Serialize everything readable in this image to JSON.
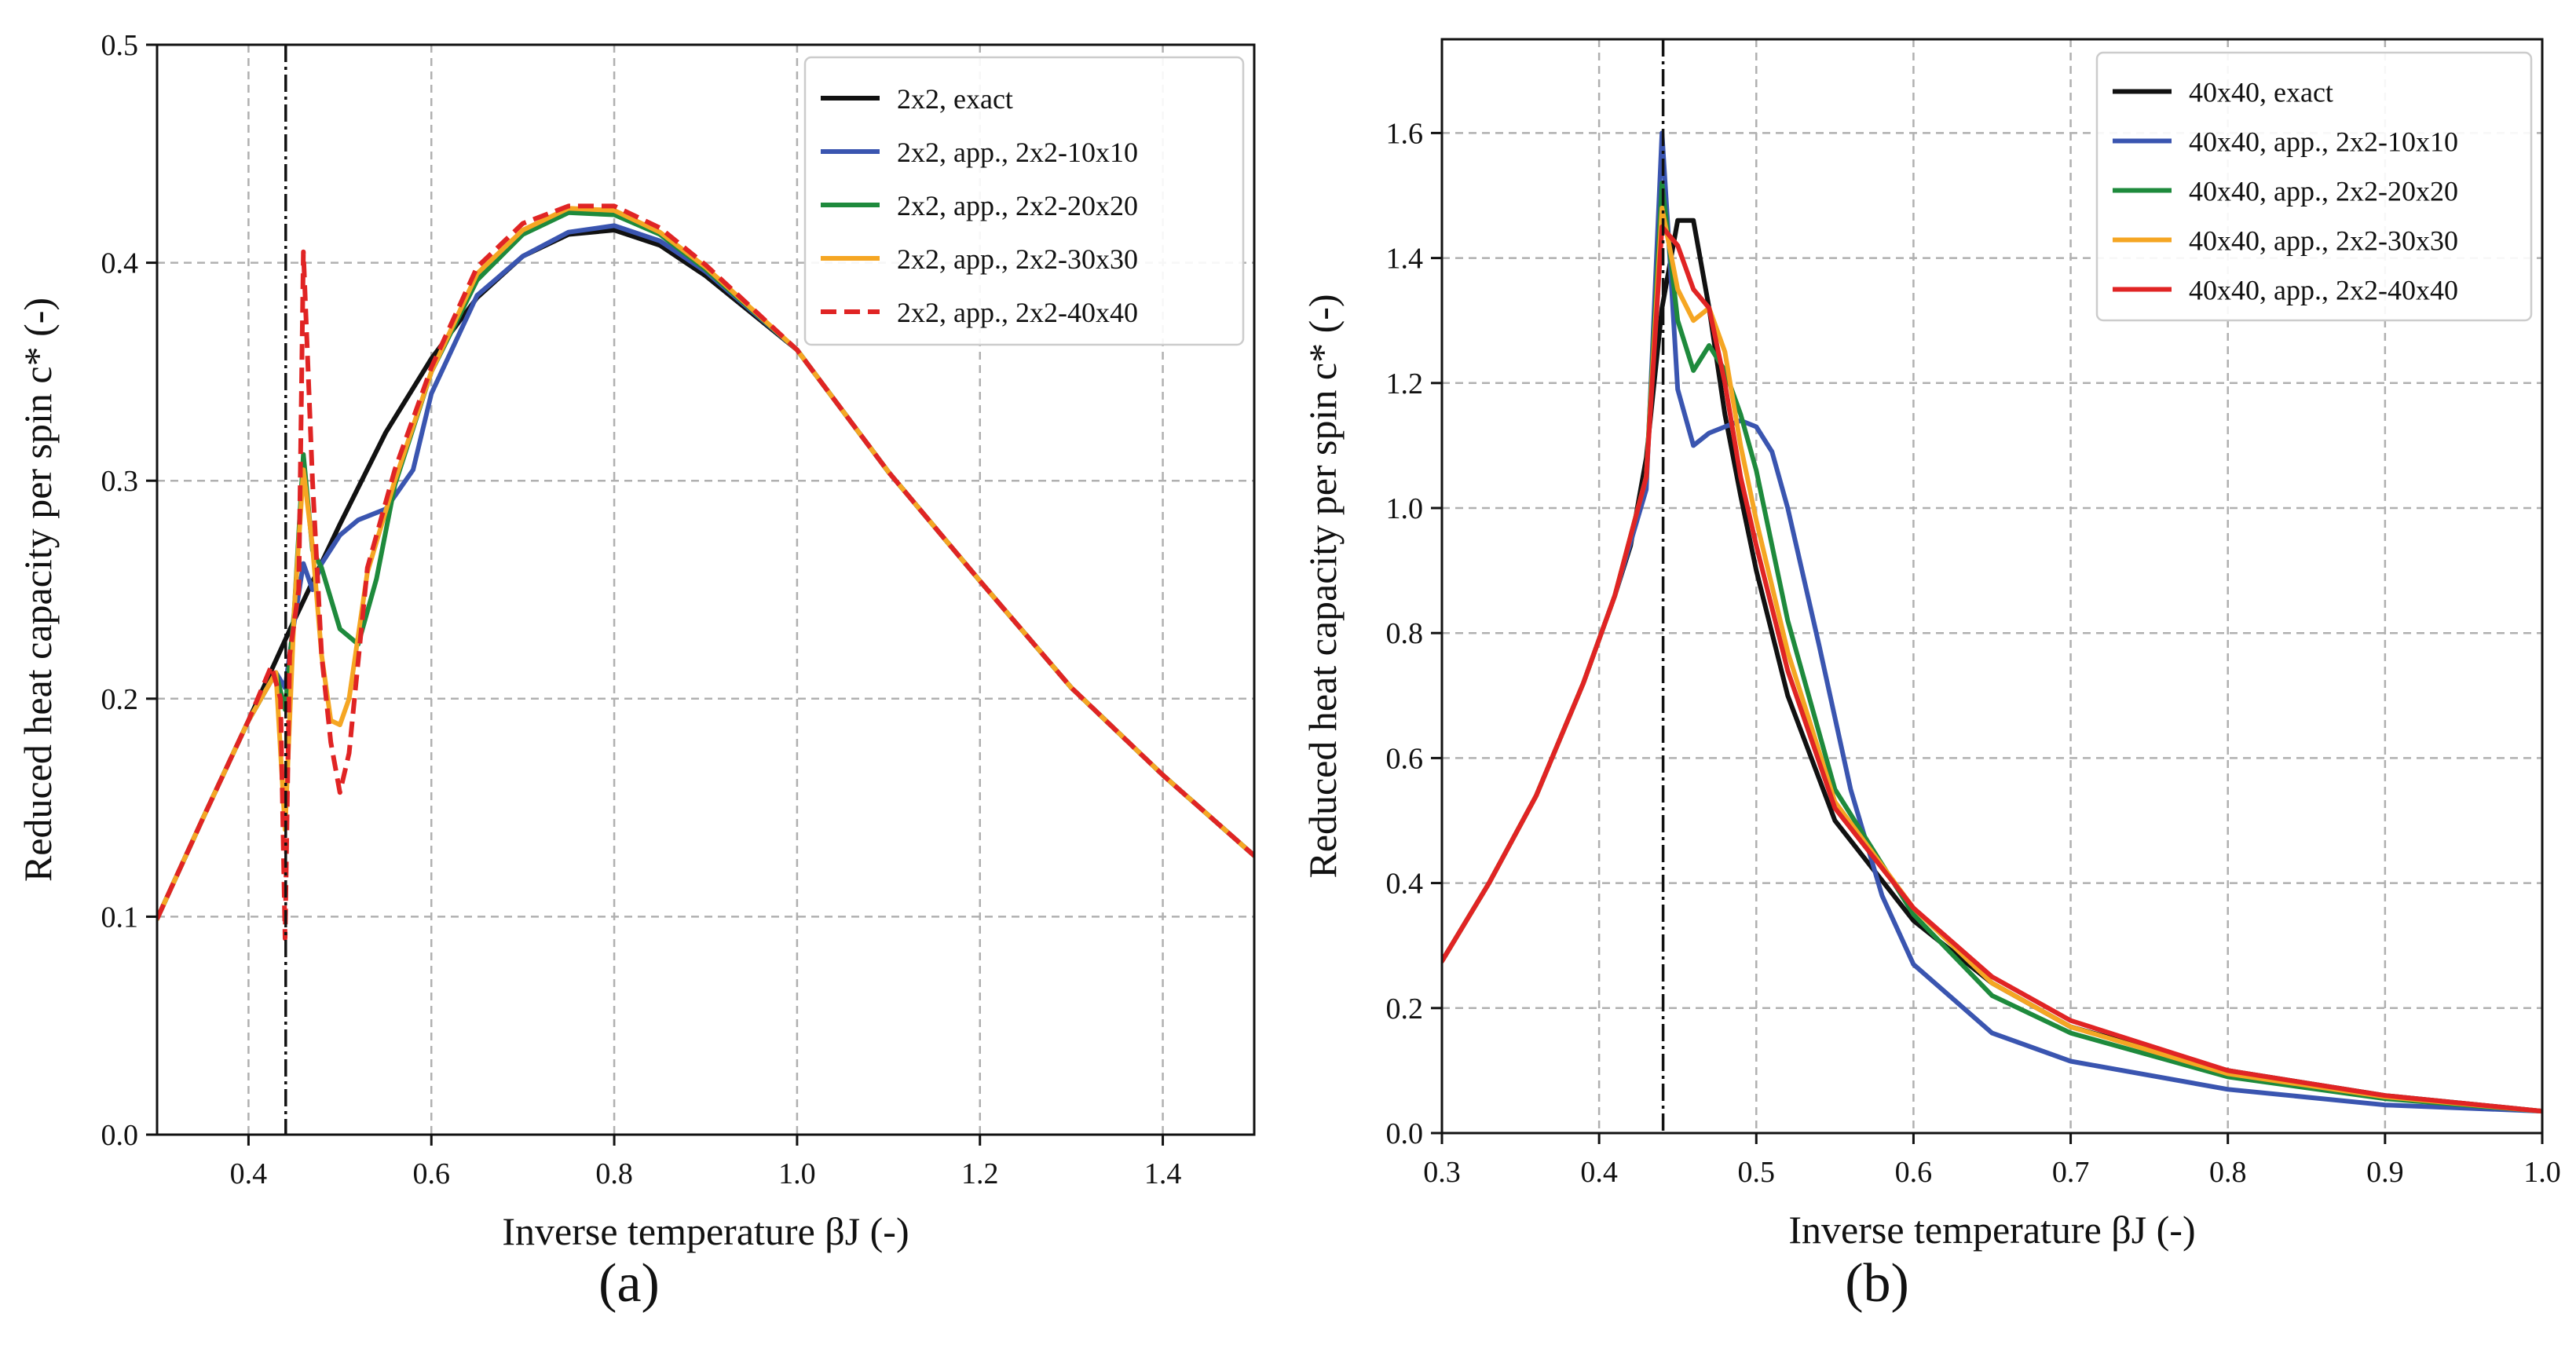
{
  "figure": {
    "captions": [
      "(a)",
      "(b)"
    ]
  },
  "chart_data": [
    {
      "id": "a",
      "type": "line",
      "xlabel": "Inverse temperature βJ (-)",
      "ylabel": "Reduced heat capacity per spin c* (-)",
      "xlim": [
        0.3,
        1.5
      ],
      "ylim": [
        0.0,
        0.5
      ],
      "xticks": [
        0.4,
        0.6,
        0.8,
        1.0,
        1.2,
        1.4
      ],
      "xtick_labels": [
        "0.4",
        "0.6",
        "0.8",
        "1.0",
        "1.2",
        "1.4"
      ],
      "yticks": [
        0.0,
        0.1,
        0.2,
        0.3,
        0.4,
        0.5
      ],
      "ytick_labels": [
        "0.0",
        "0.1",
        "0.2",
        "0.3",
        "0.4",
        "0.5"
      ],
      "grid": true,
      "vline": 0.4407,
      "legend_position": "top-right",
      "series": [
        {
          "name": "2x2, exact",
          "color": "#111111",
          "dash": "solid",
          "x": [
            0.3,
            0.35,
            0.4,
            0.45,
            0.5,
            0.55,
            0.6,
            0.65,
            0.7,
            0.75,
            0.8,
            0.85,
            0.9,
            1.0,
            1.1,
            1.2,
            1.3,
            1.4,
            1.5
          ],
          "y": [
            0.099,
            0.145,
            0.19,
            0.236,
            0.28,
            0.322,
            0.356,
            0.384,
            0.403,
            0.413,
            0.415,
            0.408,
            0.394,
            0.36,
            0.304,
            0.254,
            0.205,
            0.165,
            0.128
          ]
        },
        {
          "name": "2x2, app., 2x2-10x10",
          "color": "#3a55b0",
          "dash": "solid",
          "x": [
            0.3,
            0.35,
            0.4,
            0.43,
            0.44,
            0.45,
            0.46,
            0.47,
            0.48,
            0.5,
            0.52,
            0.55,
            0.58,
            0.6,
            0.65,
            0.7,
            0.75,
            0.8,
            0.85,
            0.9,
            1.0,
            1.1,
            1.2,
            1.3,
            1.4,
            1.5
          ],
          "y": [
            0.099,
            0.145,
            0.19,
            0.212,
            0.205,
            0.235,
            0.262,
            0.25,
            0.262,
            0.275,
            0.282,
            0.287,
            0.305,
            0.34,
            0.385,
            0.403,
            0.414,
            0.417,
            0.41,
            0.396,
            0.36,
            0.304,
            0.254,
            0.205,
            0.165,
            0.128
          ]
        },
        {
          "name": "2x2, app., 2x2-20x20",
          "color": "#1e8a3c",
          "dash": "solid",
          "x": [
            0.3,
            0.35,
            0.4,
            0.43,
            0.44,
            0.45,
            0.46,
            0.47,
            0.48,
            0.5,
            0.52,
            0.54,
            0.56,
            0.6,
            0.65,
            0.7,
            0.75,
            0.8,
            0.85,
            0.9,
            1.0,
            1.1,
            1.2,
            1.3,
            1.4,
            1.5
          ],
          "y": [
            0.099,
            0.145,
            0.19,
            0.212,
            0.195,
            0.24,
            0.312,
            0.268,
            0.26,
            0.232,
            0.225,
            0.255,
            0.298,
            0.35,
            0.392,
            0.413,
            0.423,
            0.422,
            0.413,
            0.397,
            0.36,
            0.304,
            0.254,
            0.205,
            0.165,
            0.128
          ]
        },
        {
          "name": "2x2, app., 2x2-30x30",
          "color": "#f5a623",
          "dash": "solid",
          "x": [
            0.3,
            0.35,
            0.4,
            0.43,
            0.44,
            0.45,
            0.46,
            0.47,
            0.48,
            0.49,
            0.5,
            0.51,
            0.53,
            0.56,
            0.6,
            0.65,
            0.7,
            0.75,
            0.8,
            0.85,
            0.9,
            1.0,
            1.1,
            1.2,
            1.3,
            1.4,
            1.5
          ],
          "y": [
            0.099,
            0.145,
            0.19,
            0.212,
            0.14,
            0.24,
            0.305,
            0.27,
            0.22,
            0.19,
            0.188,
            0.2,
            0.258,
            0.3,
            0.35,
            0.395,
            0.415,
            0.425,
            0.424,
            0.414,
            0.398,
            0.36,
            0.304,
            0.254,
            0.205,
            0.165,
            0.128
          ]
        },
        {
          "name": "2x2, app., 2x2-40x40",
          "color": "#e02424",
          "dash": "dashed",
          "x": [
            0.3,
            0.35,
            0.4,
            0.425,
            0.435,
            0.44,
            0.445,
            0.455,
            0.46,
            0.47,
            0.48,
            0.49,
            0.5,
            0.51,
            0.53,
            0.56,
            0.6,
            0.65,
            0.7,
            0.75,
            0.8,
            0.85,
            0.9,
            1.0,
            1.1,
            1.2,
            1.3,
            1.4,
            1.5
          ],
          "y": [
            0.099,
            0.145,
            0.19,
            0.215,
            0.2,
            0.09,
            0.22,
            0.25,
            0.405,
            0.3,
            0.22,
            0.18,
            0.157,
            0.175,
            0.26,
            0.305,
            0.352,
            0.398,
            0.418,
            0.426,
            0.426,
            0.416,
            0.399,
            0.36,
            0.304,
            0.254,
            0.205,
            0.165,
            0.128
          ]
        }
      ]
    },
    {
      "id": "b",
      "type": "line",
      "xlabel": "Inverse temperature βJ (-)",
      "ylabel": "Reduced heat capacity per spin c* (-)",
      "xlim": [
        0.3,
        1.0
      ],
      "ylim": [
        0.0,
        1.75
      ],
      "xticks": [
        0.3,
        0.4,
        0.5,
        0.6,
        0.7,
        0.8,
        0.9,
        1.0
      ],
      "xtick_labels": [
        "0.3",
        "0.4",
        "0.5",
        "0.6",
        "0.7",
        "0.8",
        "0.9",
        "1.0"
      ],
      "yticks": [
        0.0,
        0.2,
        0.4,
        0.6,
        0.8,
        1.0,
        1.2,
        1.4,
        1.6
      ],
      "ytick_labels": [
        "0.0",
        "0.2",
        "0.4",
        "0.6",
        "0.8",
        "1.0",
        "1.2",
        "1.4",
        "1.6"
      ],
      "grid": true,
      "vline": 0.4407,
      "legend_position": "top-right",
      "series": [
        {
          "name": "40x40, exact",
          "color": "#111111",
          "dash": "solid",
          "x": [
            0.3,
            0.33,
            0.36,
            0.39,
            0.41,
            0.42,
            0.43,
            0.44,
            0.45,
            0.46,
            0.47,
            0.48,
            0.49,
            0.5,
            0.52,
            0.55,
            0.6,
            0.65,
            0.7,
            0.8,
            0.9,
            1.0
          ],
          "y": [
            0.275,
            0.4,
            0.54,
            0.72,
            0.86,
            0.94,
            1.08,
            1.32,
            1.46,
            1.46,
            1.32,
            1.15,
            1.02,
            0.9,
            0.7,
            0.5,
            0.34,
            0.24,
            0.17,
            0.1,
            0.06,
            0.035
          ]
        },
        {
          "name": "40x40, app., 2x2-10x10",
          "color": "#3a55b0",
          "dash": "solid",
          "x": [
            0.3,
            0.33,
            0.36,
            0.39,
            0.41,
            0.43,
            0.44,
            0.445,
            0.45,
            0.46,
            0.47,
            0.48,
            0.49,
            0.5,
            0.51,
            0.52,
            0.54,
            0.56,
            0.58,
            0.6,
            0.65,
            0.7,
            0.8,
            0.9,
            1.0
          ],
          "y": [
            0.275,
            0.4,
            0.54,
            0.72,
            0.86,
            1.03,
            1.6,
            1.4,
            1.19,
            1.1,
            1.12,
            1.13,
            1.14,
            1.13,
            1.09,
            1.0,
            0.78,
            0.55,
            0.38,
            0.27,
            0.16,
            0.115,
            0.07,
            0.045,
            0.035
          ]
        },
        {
          "name": "40x40, app., 2x2-20x20",
          "color": "#1e8a3c",
          "dash": "solid",
          "x": [
            0.3,
            0.33,
            0.36,
            0.39,
            0.41,
            0.43,
            0.44,
            0.45,
            0.46,
            0.47,
            0.48,
            0.49,
            0.5,
            0.52,
            0.55,
            0.6,
            0.65,
            0.7,
            0.8,
            0.9,
            1.0
          ],
          "y": [
            0.275,
            0.4,
            0.54,
            0.72,
            0.86,
            1.05,
            1.52,
            1.3,
            1.22,
            1.26,
            1.22,
            1.15,
            1.06,
            0.82,
            0.55,
            0.35,
            0.22,
            0.16,
            0.09,
            0.055,
            0.035
          ]
        },
        {
          "name": "40x40, app., 2x2-30x30",
          "color": "#f5a623",
          "dash": "solid",
          "x": [
            0.3,
            0.33,
            0.36,
            0.39,
            0.41,
            0.43,
            0.44,
            0.45,
            0.46,
            0.47,
            0.48,
            0.49,
            0.5,
            0.52,
            0.55,
            0.6,
            0.65,
            0.7,
            0.8,
            0.9,
            1.0
          ],
          "y": [
            0.275,
            0.4,
            0.54,
            0.72,
            0.86,
            1.05,
            1.48,
            1.35,
            1.3,
            1.32,
            1.25,
            1.1,
            0.98,
            0.77,
            0.53,
            0.36,
            0.24,
            0.17,
            0.095,
            0.058,
            0.035
          ]
        },
        {
          "name": "40x40, app., 2x2-40x40",
          "color": "#e02424",
          "dash": "solid",
          "x": [
            0.3,
            0.33,
            0.36,
            0.39,
            0.41,
            0.43,
            0.44,
            0.45,
            0.46,
            0.47,
            0.48,
            0.49,
            0.5,
            0.52,
            0.55,
            0.6,
            0.65,
            0.7,
            0.8,
            0.9,
            1.0
          ],
          "y": [
            0.275,
            0.4,
            0.54,
            0.72,
            0.86,
            1.05,
            1.45,
            1.42,
            1.35,
            1.32,
            1.2,
            1.05,
            0.94,
            0.74,
            0.52,
            0.36,
            0.25,
            0.18,
            0.1,
            0.06,
            0.035
          ]
        }
      ]
    }
  ]
}
